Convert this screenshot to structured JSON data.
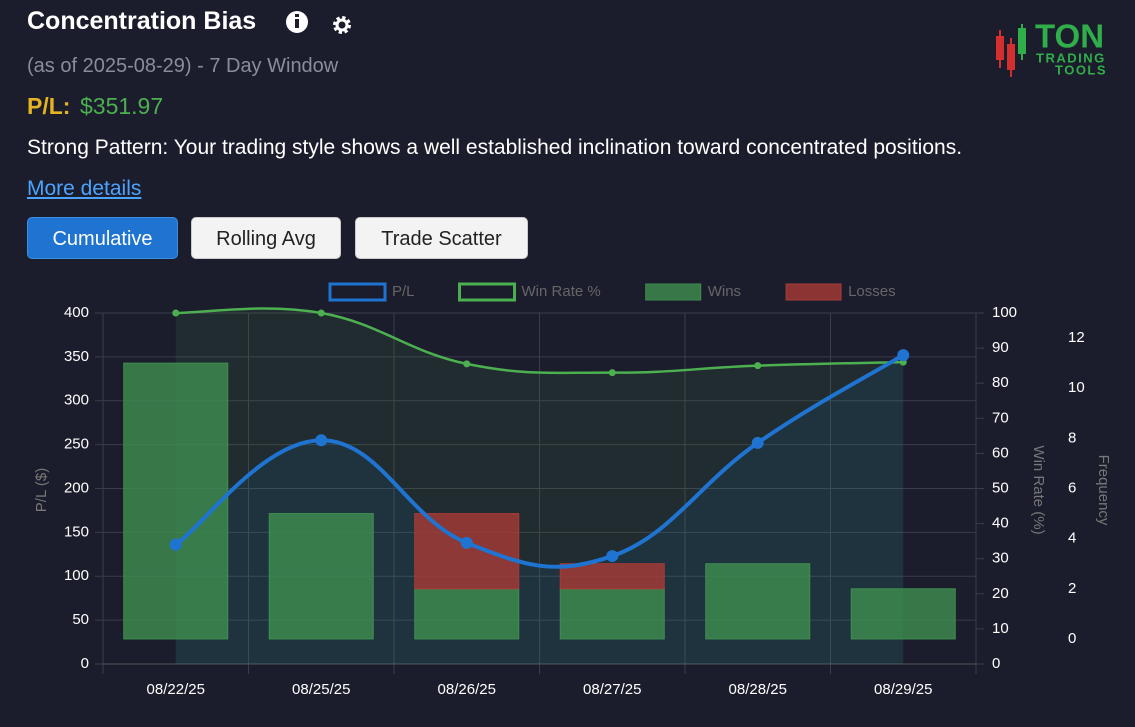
{
  "header": {
    "title": "Concentration Bias",
    "subtitle": "(as of 2025-08-29) - 7 Day Window",
    "pl_label": "P/L:",
    "pl_value": "$351.97",
    "description": "Strong Pattern: Your trading style shows a well established inclination toward concentrated positions.",
    "link": "More details"
  },
  "logo": {
    "name": "TON",
    "line1": "TRADING",
    "line2": "TOOLS"
  },
  "buttons": [
    "Cumulative",
    "Rolling Avg",
    "Trade Scatter"
  ],
  "chart_data": {
    "type": "bar-line",
    "categories": [
      "08/22/25",
      "08/25/25",
      "08/26/25",
      "08/27/25",
      "08/28/25",
      "08/29/25"
    ],
    "series": [
      {
        "name": "P/L",
        "type": "line",
        "color": "#1f74d1",
        "axis": "y",
        "values": [
          136,
          255,
          138,
          123,
          252,
          351.97
        ]
      },
      {
        "name": "Win Rate %",
        "type": "line",
        "color": "#4caf50",
        "axis": "y2",
        "values": [
          100,
          100,
          85.5,
          83,
          85,
          86
        ]
      },
      {
        "name": "Wins",
        "type": "bar",
        "color": "#3e8e50",
        "axis": "y3",
        "values": [
          11,
          5,
          2,
          2,
          3,
          2
        ]
      },
      {
        "name": "Losses",
        "type": "bar",
        "color": "#a83b36",
        "axis": "y3",
        "values": [
          0,
          0,
          3,
          1,
          0,
          0
        ]
      }
    ],
    "ylabel": "P/L ($)",
    "y2label": "Win Rate (%)",
    "y3label": "Frequency",
    "ylim": [
      0,
      400
    ],
    "yticks": [
      0,
      50,
      100,
      150,
      200,
      250,
      300,
      350,
      400
    ],
    "y2lim": [
      0,
      100
    ],
    "y2ticks": [
      0,
      10,
      20,
      30,
      40,
      50,
      60,
      70,
      80,
      90,
      100
    ],
    "y3lim": [
      -1,
      13
    ],
    "y3ticks": [
      0,
      2,
      4,
      6,
      8,
      10,
      12
    ],
    "grid": true,
    "legend": "top"
  }
}
